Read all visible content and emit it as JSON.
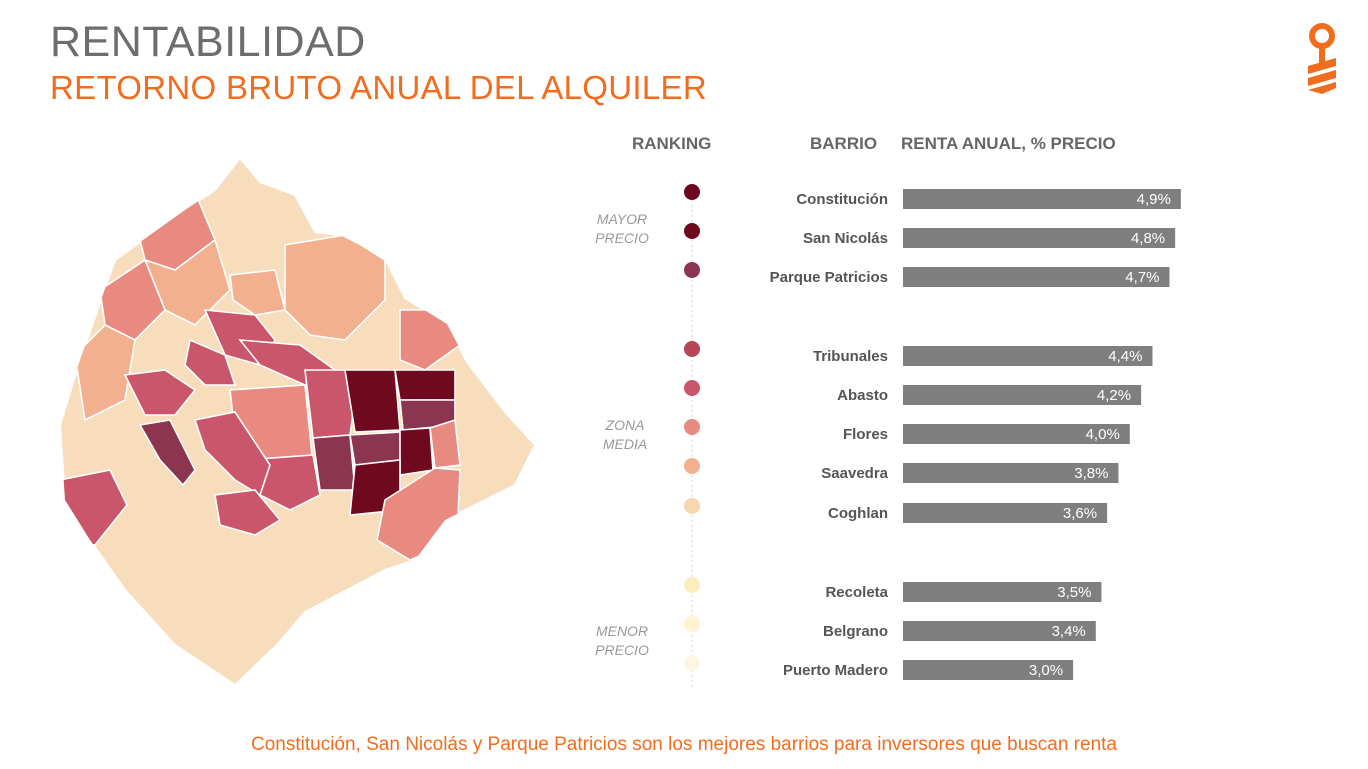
{
  "header": {
    "title": "RENTABILIDAD",
    "subtitle": "RETORNO BRUTO ANUAL DEL ALQUILER"
  },
  "columns": {
    "ranking": "RANKING",
    "barrio": "BARRIO",
    "renta": "RENTA ANUAL, % PRECIO"
  },
  "zones": [
    {
      "line1": "MAYOR",
      "line2": "PRECIO"
    },
    {
      "line1": "ZONA",
      "line2": "MEDIA"
    },
    {
      "line1": "MENOR",
      "line2": "PRECIO"
    }
  ],
  "colors": {
    "accent": "#f26c1e",
    "bar": "#7f7f7f",
    "title_gray": "#6d6d6d",
    "scale": [
      "#6f0a1e",
      "#6f0a1e",
      "#8c3550",
      "#b84558",
      "#c9566a",
      "#e88a80",
      "#f3b08e",
      "#f7d7ad",
      "#fbeebd",
      "#fdf3d2",
      "#fdf6e2"
    ]
  },
  "chart_data": {
    "type": "bar",
    "orientation": "horizontal",
    "ylabel": "RENTA ANUAL, % PRECIO",
    "xlim": [
      0,
      5.5
    ],
    "categories": [
      "Constitución",
      "San Nicolás",
      "Parque Patricios",
      "Tribunales",
      "Abasto",
      "Flores",
      "Saavedra",
      "Coghlan",
      "Recoleta",
      "Belgrano",
      "Puerto Madero"
    ],
    "values": [
      4.9,
      4.8,
      4.7,
      4.4,
      4.2,
      4.0,
      3.8,
      3.6,
      3.5,
      3.4,
      3.0
    ],
    "value_labels": [
      "4,9%",
      "4,8%",
      "4,7%",
      "4,4%",
      "4,2%",
      "4,0%",
      "3,8%",
      "3,6%",
      "3,5%",
      "3,4%",
      "3,0%"
    ],
    "groups": [
      0,
      0,
      0,
      1,
      1,
      1,
      1,
      1,
      2,
      2,
      2
    ]
  },
  "footer": {
    "note": "Constitución, San Nicolás y Parque Patricios son los mejores barrios para inversores que buscan renta"
  }
}
